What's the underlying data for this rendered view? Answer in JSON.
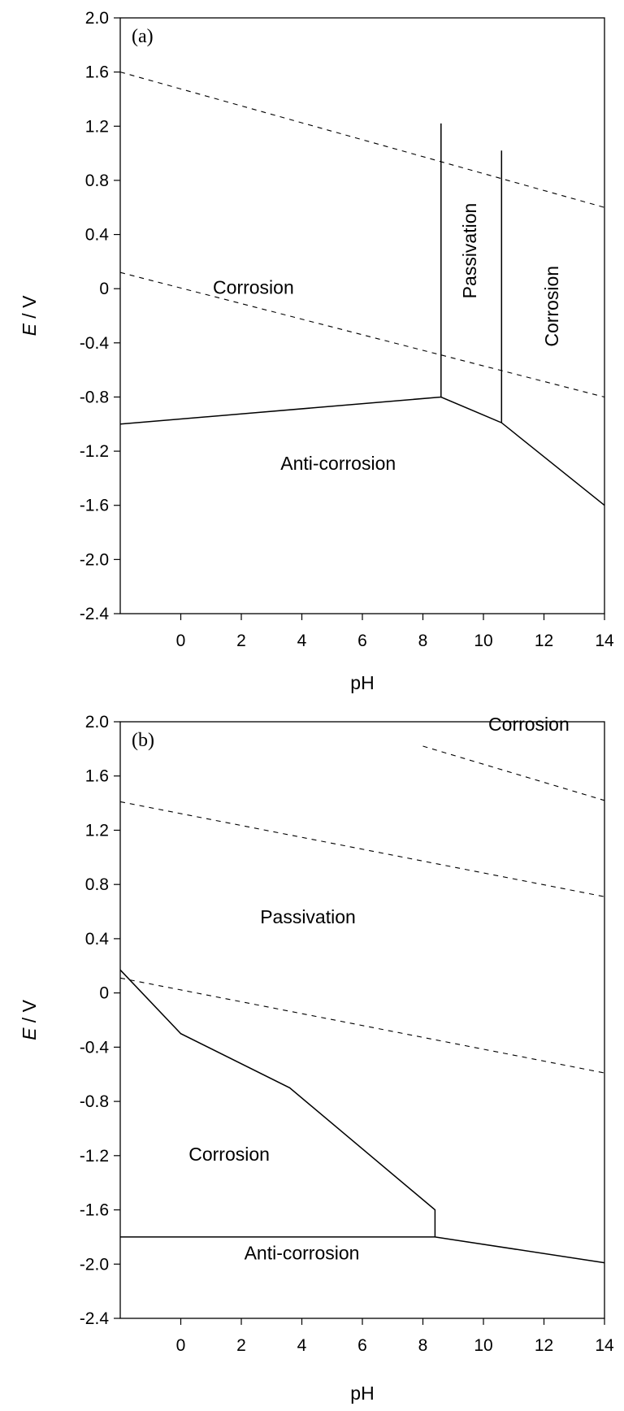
{
  "chart_data": [
    {
      "type": "line",
      "panel_label": "(a)",
      "xlabel": "pH",
      "ylabel_italic": "E",
      "ylabel_rest": " / V",
      "xlim": [
        -2,
        14
      ],
      "ylim": [
        -2.4,
        2.0
      ],
      "x_ticks": [
        0,
        2,
        4,
        6,
        8,
        10,
        12,
        14
      ],
      "y_ticks": [
        2.0,
        1.6,
        1.2,
        0.8,
        0.4,
        0,
        -0.4,
        -0.8,
        -1.2,
        -1.6,
        -2.0,
        -2.4
      ],
      "x_tick_labels": [
        "0",
        "2",
        "4",
        "6",
        "8",
        "10",
        "12",
        "14"
      ],
      "y_tick_labels": [
        "2.0",
        "1.6",
        "1.2",
        "0.8",
        "0.4",
        "0",
        "-0.4",
        "-0.8",
        "-1.2",
        "-1.6",
        "-2.0",
        "-2.4"
      ],
      "grid": false,
      "series": [
        {
          "style": "dashed",
          "points": [
            [
              -2,
              1.6
            ],
            [
              14,
              0.6
            ]
          ]
        },
        {
          "style": "dashed",
          "points": [
            [
              -2,
              0.12
            ],
            [
              14,
              -0.8
            ]
          ]
        },
        {
          "style": "solid",
          "points": [
            [
              -2,
              -1.0
            ],
            [
              8.6,
              -0.8
            ],
            [
              10.6,
              -0.99
            ],
            [
              14,
              -1.6
            ]
          ]
        },
        {
          "style": "solid",
          "points": [
            [
              8.6,
              -0.8
            ],
            [
              8.6,
              1.22
            ]
          ]
        },
        {
          "style": "solid",
          "points": [
            [
              10.6,
              -0.99
            ],
            [
              10.6,
              1.02
            ]
          ]
        }
      ],
      "annotations": [
        {
          "text": "Corrosion",
          "x": 2.4,
          "y": 0.0,
          "rotate": 0
        },
        {
          "text": "Passivation",
          "x": 9.6,
          "y": 0.28,
          "rotate": -90
        },
        {
          "text": "Corrosion",
          "x": 12.3,
          "y": -0.13,
          "rotate": -90
        },
        {
          "text": "Anti-corrosion",
          "x": 5.2,
          "y": -1.3,
          "rotate": 0
        }
      ]
    },
    {
      "type": "line",
      "panel_label": "(b)",
      "xlabel": "pH",
      "ylabel_italic": "E",
      "ylabel_rest": " / V",
      "xlim": [
        -2,
        14
      ],
      "ylim": [
        -2.4,
        2.0
      ],
      "x_ticks": [
        0,
        2,
        4,
        6,
        8,
        10,
        12,
        14
      ],
      "y_ticks": [
        2.0,
        1.6,
        1.2,
        0.8,
        0.4,
        0,
        -0.4,
        -0.8,
        -1.2,
        -1.6,
        -2.0,
        -2.4
      ],
      "x_tick_labels": [
        "0",
        "2",
        "4",
        "6",
        "8",
        "10",
        "12",
        "14"
      ],
      "y_tick_labels": [
        "2.0",
        "1.6",
        "1.2",
        "0.8",
        "0.4",
        "0",
        "-0.4",
        "-0.8",
        "-1.2",
        "-1.6",
        "-2.0",
        "-2.4"
      ],
      "grid": false,
      "series": [
        {
          "style": "dashed",
          "points": [
            [
              8,
              1.82
            ],
            [
              14,
              1.42
            ]
          ]
        },
        {
          "style": "dashed",
          "points": [
            [
              -2,
              1.41
            ],
            [
              14,
              0.71
            ]
          ]
        },
        {
          "style": "dashed",
          "points": [
            [
              -2,
              0.11
            ],
            [
              14,
              -0.59
            ]
          ]
        },
        {
          "style": "solid",
          "points": [
            [
              -2,
              0.17
            ],
            [
              0,
              -0.3
            ],
            [
              3.6,
              -0.7
            ],
            [
              8.4,
              -1.6
            ],
            [
              8.4,
              -1.8
            ]
          ]
        },
        {
          "style": "solid",
          "points": [
            [
              -2,
              -1.8
            ],
            [
              8.4,
              -1.8
            ],
            [
              14,
              -1.99
            ]
          ]
        }
      ],
      "annotations": [
        {
          "text": "Corrosion",
          "x": 11.5,
          "y": 1.97,
          "rotate": 0
        },
        {
          "text": "Passivation",
          "x": 4.2,
          "y": 0.55,
          "rotate": 0
        },
        {
          "text": "Corrosion",
          "x": 1.6,
          "y": -1.2,
          "rotate": 0
        },
        {
          "text": "Anti-corrosion",
          "x": 4.0,
          "y": -1.93,
          "rotate": 0
        }
      ]
    }
  ]
}
